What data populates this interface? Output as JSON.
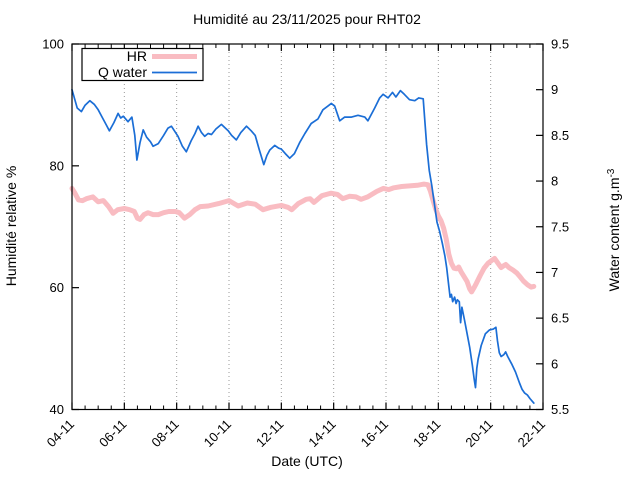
{
  "page": {
    "background": "#ffffff"
  },
  "chart": {
    "title": "Humidité au 23/11/2025 pour RHT02",
    "xlabel": "Date (UTC)",
    "ylabel_left": "Humidité relative %",
    "ylabel_right": "Water content g.m",
    "ylabel_right_sup": "-3",
    "frame_color": "#000000",
    "grid_color": "#999999",
    "text_color": "#000000"
  },
  "chart_data": {
    "type": "line",
    "title": "Humidité au 23/11/2025 pour RHT02",
    "xlabel": "Date (UTC)",
    "legend_position": "top-left",
    "grid": "vertical-dotted-at-major-x-ticks",
    "x_axis": {
      "unit": "day-month (November 2025)",
      "range_days": [
        4,
        22
      ],
      "tick_days": [
        4,
        6,
        8,
        10,
        12,
        14,
        16,
        18,
        20,
        22
      ],
      "tick_labels": [
        "04-11",
        "06-11",
        "08-11",
        "10-11",
        "12-11",
        "14-11",
        "16-11",
        "18-11",
        "20-11",
        "22-11"
      ],
      "minor_tick_step_days": 0.5,
      "grid_days": [
        6,
        8,
        10,
        12,
        14,
        16,
        18,
        20
      ]
    },
    "y_left": {
      "label": "Humidité relative %",
      "range": [
        40,
        100
      ],
      "ticks": [
        40,
        60,
        80,
        100
      ],
      "tick_labels": [
        "40",
        "60",
        "80",
        "100"
      ]
    },
    "y_right": {
      "label": "Water content g.m-3",
      "range": [
        5.5,
        9.5
      ],
      "ticks": [
        5.5,
        6,
        6.5,
        7,
        7.5,
        8,
        8.5,
        9,
        9.5
      ],
      "tick_labels": [
        "5.5",
        "6",
        "6.5",
        "7",
        "7.5",
        "8",
        "8.5",
        "9",
        "9.5"
      ]
    },
    "series": [
      {
        "name": "HR",
        "axis": "left",
        "unit": "%",
        "color": "#f9bcc2",
        "line_width": 5,
        "points": [
          [
            4.0,
            76.3
          ],
          [
            4.1,
            75.6
          ],
          [
            4.25,
            74.4
          ],
          [
            4.4,
            74.3
          ],
          [
            4.55,
            74.6
          ],
          [
            4.8,
            74.9
          ],
          [
            5.0,
            74.1
          ],
          [
            5.2,
            74.3
          ],
          [
            5.4,
            73.3
          ],
          [
            5.57,
            72.2
          ],
          [
            5.75,
            72.8
          ],
          [
            6.0,
            73.0
          ],
          [
            6.2,
            72.8
          ],
          [
            6.38,
            72.5
          ],
          [
            6.5,
            71.4
          ],
          [
            6.6,
            71.2
          ],
          [
            6.75,
            72.0
          ],
          [
            6.9,
            72.3
          ],
          [
            7.1,
            72.0
          ],
          [
            7.3,
            72.0
          ],
          [
            7.5,
            72.3
          ],
          [
            7.7,
            72.5
          ],
          [
            7.95,
            72.5
          ],
          [
            8.1,
            72.3
          ],
          [
            8.3,
            71.4
          ],
          [
            8.5,
            72.0
          ],
          [
            8.7,
            72.8
          ],
          [
            8.9,
            73.3
          ],
          [
            9.2,
            73.4
          ],
          [
            9.6,
            73.8
          ],
          [
            10.0,
            74.3
          ],
          [
            10.35,
            73.4
          ],
          [
            10.7,
            73.9
          ],
          [
            11.0,
            73.7
          ],
          [
            11.3,
            72.8
          ],
          [
            11.6,
            73.2
          ],
          [
            12.0,
            73.5
          ],
          [
            12.25,
            73.2
          ],
          [
            12.4,
            72.8
          ],
          [
            12.65,
            73.8
          ],
          [
            12.95,
            74.5
          ],
          [
            13.1,
            74.6
          ],
          [
            13.25,
            74.0
          ],
          [
            13.55,
            75.1
          ],
          [
            13.8,
            75.4
          ],
          [
            13.9,
            75.5
          ],
          [
            14.15,
            75.3
          ],
          [
            14.35,
            74.6
          ],
          [
            14.6,
            75.0
          ],
          [
            14.85,
            74.9
          ],
          [
            15.05,
            74.5
          ],
          [
            15.3,
            74.9
          ],
          [
            15.65,
            75.8
          ],
          [
            15.9,
            76.3
          ],
          [
            16.1,
            76.1
          ],
          [
            16.3,
            76.4
          ],
          [
            16.6,
            76.6
          ],
          [
            16.9,
            76.7
          ],
          [
            17.2,
            76.8
          ],
          [
            17.45,
            77.0
          ],
          [
            17.6,
            76.9
          ],
          [
            17.7,
            75.8
          ],
          [
            17.8,
            74.3
          ],
          [
            17.9,
            72.9
          ],
          [
            18.0,
            71.8
          ],
          [
            18.1,
            71.0
          ],
          [
            18.2,
            69.8
          ],
          [
            18.3,
            68.0
          ],
          [
            18.4,
            65.5
          ],
          [
            18.5,
            64.0
          ],
          [
            18.6,
            63.2
          ],
          [
            18.7,
            63.1
          ],
          [
            18.78,
            63.4
          ],
          [
            18.87,
            62.6
          ],
          [
            19.0,
            61.7
          ],
          [
            19.1,
            61.0
          ],
          [
            19.2,
            59.8
          ],
          [
            19.27,
            59.3
          ],
          [
            19.35,
            59.9
          ],
          [
            19.45,
            60.7
          ],
          [
            19.6,
            62.0
          ],
          [
            19.75,
            63.2
          ],
          [
            19.9,
            64.0
          ],
          [
            20.05,
            64.5
          ],
          [
            20.15,
            64.8
          ],
          [
            20.3,
            63.9
          ],
          [
            20.4,
            63.3
          ],
          [
            20.5,
            63.6
          ],
          [
            20.58,
            63.8
          ],
          [
            20.7,
            63.3
          ],
          [
            20.85,
            62.9
          ],
          [
            21.0,
            62.4
          ],
          [
            21.1,
            61.9
          ],
          [
            21.25,
            61.1
          ],
          [
            21.4,
            60.5
          ],
          [
            21.55,
            60.1
          ],
          [
            21.65,
            60.2
          ]
        ]
      },
      {
        "name": "Q water",
        "axis": "right",
        "unit": "g.m-3",
        "color": "#1b6ed6",
        "line_width": 1.7,
        "points": [
          [
            4.0,
            9.0
          ],
          [
            4.1,
            8.9
          ],
          [
            4.2,
            8.8
          ],
          [
            4.36,
            8.76
          ],
          [
            4.5,
            8.83
          ],
          [
            4.68,
            8.88
          ],
          [
            4.85,
            8.84
          ],
          [
            5.0,
            8.78
          ],
          [
            5.15,
            8.7
          ],
          [
            5.3,
            8.62
          ],
          [
            5.43,
            8.55
          ],
          [
            5.6,
            8.64
          ],
          [
            5.76,
            8.74
          ],
          [
            5.86,
            8.69
          ],
          [
            5.96,
            8.71
          ],
          [
            6.14,
            8.65
          ],
          [
            6.29,
            8.7
          ],
          [
            6.4,
            8.5
          ],
          [
            6.48,
            8.23
          ],
          [
            6.6,
            8.42
          ],
          [
            6.72,
            8.56
          ],
          [
            6.85,
            8.48
          ],
          [
            7.0,
            8.43
          ],
          [
            7.1,
            8.38
          ],
          [
            7.3,
            8.41
          ],
          [
            7.5,
            8.5
          ],
          [
            7.67,
            8.58
          ],
          [
            7.8,
            8.6
          ],
          [
            8.05,
            8.49
          ],
          [
            8.22,
            8.38
          ],
          [
            8.37,
            8.32
          ],
          [
            8.55,
            8.44
          ],
          [
            8.7,
            8.52
          ],
          [
            8.82,
            8.6
          ],
          [
            8.95,
            8.53
          ],
          [
            9.07,
            8.49
          ],
          [
            9.2,
            8.52
          ],
          [
            9.33,
            8.51
          ],
          [
            9.5,
            8.57
          ],
          [
            9.71,
            8.62
          ],
          [
            9.97,
            8.55
          ],
          [
            10.1,
            8.5
          ],
          [
            10.28,
            8.45
          ],
          [
            10.45,
            8.53
          ],
          [
            10.67,
            8.6
          ],
          [
            10.85,
            8.55
          ],
          [
            11.0,
            8.5
          ],
          [
            11.15,
            8.35
          ],
          [
            11.33,
            8.18
          ],
          [
            11.45,
            8.28
          ],
          [
            11.56,
            8.34
          ],
          [
            11.75,
            8.39
          ],
          [
            11.9,
            8.36
          ],
          [
            12.0,
            8.35
          ],
          [
            12.15,
            8.3
          ],
          [
            12.32,
            8.25
          ],
          [
            12.5,
            8.3
          ],
          [
            12.7,
            8.42
          ],
          [
            12.9,
            8.52
          ],
          [
            13.14,
            8.63
          ],
          [
            13.4,
            8.68
          ],
          [
            13.59,
            8.78
          ],
          [
            13.78,
            8.82
          ],
          [
            13.91,
            8.85
          ],
          [
            14.04,
            8.82
          ],
          [
            14.23,
            8.66
          ],
          [
            14.42,
            8.7
          ],
          [
            14.68,
            8.7
          ],
          [
            14.93,
            8.72
          ],
          [
            15.19,
            8.7
          ],
          [
            15.31,
            8.66
          ],
          [
            15.57,
            8.8
          ],
          [
            15.76,
            8.91
          ],
          [
            15.89,
            8.95
          ],
          [
            16.08,
            8.91
          ],
          [
            16.25,
            8.97
          ],
          [
            16.38,
            8.92
          ],
          [
            16.55,
            8.99
          ],
          [
            16.7,
            8.95
          ],
          [
            16.9,
            8.89
          ],
          [
            17.1,
            8.88
          ],
          [
            17.25,
            8.91
          ],
          [
            17.42,
            8.9
          ],
          [
            17.55,
            8.4
          ],
          [
            17.65,
            8.12
          ],
          [
            17.75,
            7.95
          ],
          [
            17.85,
            7.75
          ],
          [
            17.95,
            7.55
          ],
          [
            18.05,
            7.45
          ],
          [
            18.15,
            7.32
          ],
          [
            18.25,
            7.18
          ],
          [
            18.32,
            7.05
          ],
          [
            18.4,
            6.85
          ],
          [
            18.45,
            6.73
          ],
          [
            18.5,
            6.76
          ],
          [
            18.55,
            6.68
          ],
          [
            18.62,
            6.73
          ],
          [
            18.68,
            6.66
          ],
          [
            18.73,
            6.7
          ],
          [
            18.8,
            6.68
          ],
          [
            18.85,
            6.45
          ],
          [
            18.9,
            6.62
          ],
          [
            19.0,
            6.48
          ],
          [
            19.1,
            6.33
          ],
          [
            19.2,
            6.18
          ],
          [
            19.3,
            5.98
          ],
          [
            19.37,
            5.83
          ],
          [
            19.42,
            5.74
          ],
          [
            19.47,
            5.95
          ],
          [
            19.52,
            6.05
          ],
          [
            19.64,
            6.2
          ],
          [
            19.8,
            6.33
          ],
          [
            19.95,
            6.37
          ],
          [
            20.1,
            6.38
          ],
          [
            20.2,
            6.4
          ],
          [
            20.26,
            6.25
          ],
          [
            20.33,
            6.12
          ],
          [
            20.4,
            6.08
          ],
          [
            20.5,
            6.1
          ],
          [
            20.57,
            6.13
          ],
          [
            20.65,
            6.08
          ],
          [
            20.8,
            6.0
          ],
          [
            20.95,
            5.91
          ],
          [
            21.1,
            5.79
          ],
          [
            21.2,
            5.72
          ],
          [
            21.3,
            5.68
          ],
          [
            21.4,
            5.66
          ],
          [
            21.5,
            5.62
          ],
          [
            21.65,
            5.57
          ]
        ]
      }
    ]
  }
}
